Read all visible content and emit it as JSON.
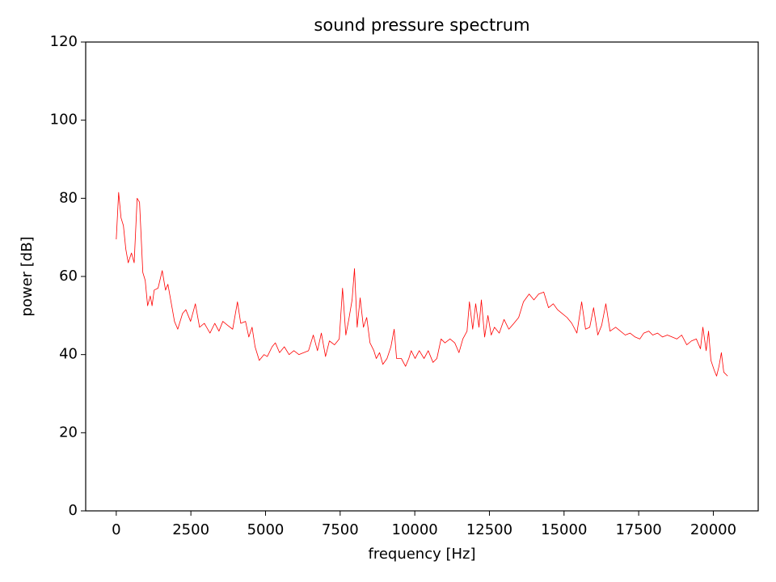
{
  "chart_data": {
    "type": "line",
    "title": "sound pressure spectrum",
    "xlabel": "frequency [Hz]",
    "ylabel": "power [dB]",
    "xlim": [
      -1024,
      21504
    ],
    "ylim": [
      0,
      120
    ],
    "xticks": [
      0,
      2500,
      5000,
      7500,
      10000,
      12500,
      15000,
      17500,
      20000
    ],
    "yticks": [
      0,
      20,
      40,
      60,
      80,
      100,
      120
    ],
    "grid": false,
    "series": [
      {
        "color": "#ff0000",
        "x": [
          0,
          80,
          160,
          240,
          320,
          400,
          510,
          600,
          700,
          780,
          890,
          970,
          1050,
          1140,
          1200,
          1270,
          1400,
          1540,
          1650,
          1730,
          1870,
          1950,
          2060,
          2220,
          2330,
          2490,
          2650,
          2790,
          2950,
          3140,
          3300,
          3440,
          3570,
          3730,
          3900,
          4060,
          4170,
          4330,
          4440,
          4550,
          4650,
          4790,
          4950,
          5060,
          5220,
          5330,
          5470,
          5630,
          5790,
          5950,
          6120,
          6280,
          6440,
          6600,
          6740,
          6870,
          7010,
          7140,
          7310,
          7470,
          7580,
          7690,
          7790,
          7900,
          7980,
          8070,
          8170,
          8280,
          8390,
          8500,
          8630,
          8710,
          8820,
          8930,
          9070,
          9200,
          9310,
          9390,
          9550,
          9690,
          9800,
          9880,
          10010,
          10150,
          10310,
          10450,
          10610,
          10740,
          10880,
          11010,
          11180,
          11340,
          11480,
          11610,
          11750,
          11830,
          11940,
          12040,
          12150,
          12230,
          12340,
          12450,
          12560,
          12670,
          12830,
          12990,
          13150,
          13320,
          13480,
          13640,
          13830,
          13990,
          14150,
          14320,
          14480,
          14640,
          14780,
          14940,
          15100,
          15260,
          15430,
          15590,
          15720,
          15860,
          15990,
          16130,
          16260,
          16400,
          16540,
          16730,
          16890,
          17050,
          17210,
          17380,
          17540,
          17670,
          17840,
          17970,
          18130,
          18300,
          18460,
          18620,
          18780,
          18940,
          19110,
          19270,
          19430,
          19570,
          19650,
          19760,
          19840,
          19920,
          20030,
          20110,
          20190,
          20270,
          20350,
          20480
        ],
        "values": [
          69.5,
          81.5,
          75,
          73,
          67,
          63.5,
          66,
          63.5,
          80,
          79,
          61,
          59,
          52.5,
          55,
          52.5,
          56.5,
          57,
          61.5,
          56.5,
          58,
          52,
          48.5,
          46.5,
          50.5,
          51.5,
          48.5,
          53,
          47,
          48,
          45.5,
          48,
          46,
          48.5,
          47.5,
          46.5,
          53.5,
          48,
          48.5,
          44.5,
          47,
          42,
          38.5,
          40,
          39.5,
          42,
          43,
          40.5,
          42,
          40,
          41,
          40,
          40.5,
          41,
          45,
          41,
          45.5,
          39.5,
          43.5,
          42.5,
          44,
          57,
          45,
          49,
          54,
          62,
          47,
          54.5,
          47,
          49.5,
          43,
          41,
          39,
          40.5,
          37.5,
          39,
          42,
          46.5,
          39,
          39,
          37,
          39,
          41,
          39,
          41,
          39,
          41,
          38,
          39,
          44,
          43,
          44,
          43,
          40.5,
          44,
          46,
          53.5,
          46.5,
          53,
          47,
          54,
          44.5,
          50,
          45,
          47,
          45.5,
          49,
          46.5,
          48,
          49.5,
          53.5,
          55.5,
          54,
          55.5,
          56,
          52,
          53,
          51.5,
          50.5,
          49.5,
          48,
          45.5,
          53.5,
          46.5,
          47,
          52,
          45,
          47.5,
          53,
          46,
          47,
          46,
          45,
          45.5,
          44.5,
          44,
          45.5,
          46,
          45,
          45.5,
          44.5,
          45,
          44.5,
          44,
          45,
          42.5,
          43.5,
          44,
          41.5,
          47,
          41,
          46,
          38.5,
          36,
          34.5,
          37,
          40.5,
          35.5,
          34.5
        ]
      }
    ]
  }
}
